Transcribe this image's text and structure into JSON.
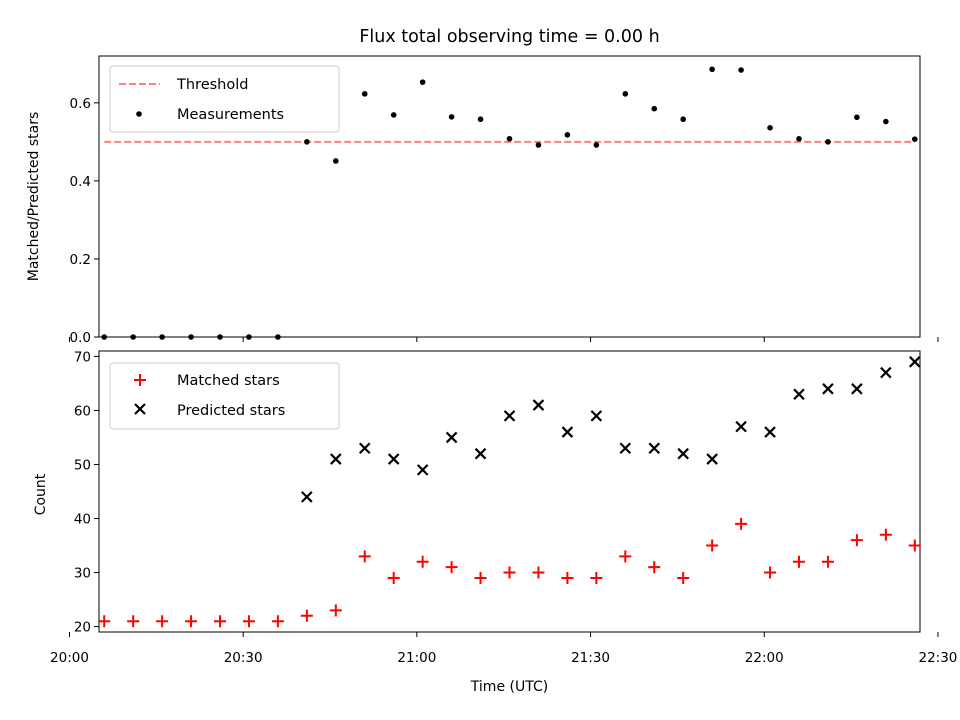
{
  "chart_data": [
    {
      "type": "scatter",
      "title": "Flux total observing time = 0.00 h",
      "xlabel": "",
      "ylabel": "Matched/Predicted stars",
      "xlim": [
        "20:00",
        "22:30"
      ],
      "ylim": [
        0,
        0.72
      ],
      "yticks": [
        0.0,
        0.2,
        0.4,
        0.6
      ],
      "ytick_labels": [
        "0.0",
        "0.2",
        "0.4",
        "0.6"
      ],
      "legend_position": "upper-left",
      "series": [
        {
          "name": "Threshold",
          "kind": "dashed-line",
          "color": "#ff7f7f",
          "x": [
            "20:06",
            "22:26"
          ],
          "y": [
            0.5,
            0.5
          ]
        },
        {
          "name": "Measurements",
          "kind": "points",
          "color": "#000000",
          "x": [
            "20:06",
            "20:11",
            "20:16",
            "20:21",
            "20:26",
            "20:31",
            "20:36",
            "20:41",
            "20:46",
            "20:51",
            "20:56",
            "21:01",
            "21:06",
            "21:11",
            "21:16",
            "21:21",
            "21:26",
            "21:31",
            "21:36",
            "21:41",
            "21:46",
            "21:51",
            "21:56",
            "22:01",
            "22:06",
            "22:11",
            "22:16",
            "22:21",
            "22:26"
          ],
          "y": [
            0,
            0,
            0,
            0,
            0,
            0,
            0,
            0.5,
            0.451,
            0.623,
            0.569,
            0.653,
            0.564,
            0.558,
            0.508,
            0.492,
            0.518,
            0.492,
            0.623,
            0.585,
            0.558,
            0.686,
            0.684,
            0.536,
            0.508,
            0.5,
            0.563,
            0.552,
            0.507
          ]
        }
      ]
    },
    {
      "type": "scatter",
      "title": "",
      "xlabel": "Time (UTC)",
      "ylabel": "Count",
      "xlim": [
        "20:00",
        "22:30"
      ],
      "ylim": [
        19,
        71
      ],
      "yticks": [
        20,
        30,
        40,
        50,
        60,
        70
      ],
      "ytick_labels": [
        "20",
        "30",
        "40",
        "50",
        "60",
        "70"
      ],
      "xticks": [
        "20:00",
        "20:30",
        "21:00",
        "21:30",
        "22:00",
        "22:30"
      ],
      "xtick_labels": [
        "20:00",
        "20:30",
        "21:00",
        "21:30",
        "22:00",
        "22:30"
      ],
      "legend_position": "upper-left",
      "series": [
        {
          "name": "Matched stars",
          "kind": "plus",
          "color": "#ff0000",
          "x": [
            "20:06",
            "20:11",
            "20:16",
            "20:21",
            "20:26",
            "20:31",
            "20:36",
            "20:41",
            "20:46",
            "20:51",
            "20:56",
            "21:01",
            "21:06",
            "21:11",
            "21:16",
            "21:21",
            "21:26",
            "21:31",
            "21:36",
            "21:41",
            "21:46",
            "21:51",
            "21:56",
            "22:01",
            "22:06",
            "22:11",
            "22:16",
            "22:21",
            "22:26"
          ],
          "y": [
            21,
            21,
            21,
            21,
            21,
            21,
            21,
            22,
            23,
            33,
            29,
            32,
            31,
            29,
            30,
            30,
            29,
            29,
            33,
            31,
            29,
            35,
            39,
            30,
            32,
            32,
            36,
            37,
            35
          ]
        },
        {
          "name": "Predicted stars",
          "kind": "cross",
          "color": "#000000",
          "x": [
            "20:41",
            "20:46",
            "20:51",
            "20:56",
            "21:01",
            "21:06",
            "21:11",
            "21:16",
            "21:21",
            "21:26",
            "21:31",
            "21:36",
            "21:41",
            "21:46",
            "21:51",
            "21:56",
            "22:01",
            "22:06",
            "22:11",
            "22:16",
            "22:21",
            "22:26"
          ],
          "y": [
            44,
            51,
            53,
            51,
            49,
            55,
            52,
            59,
            61,
            56,
            59,
            53,
            53,
            52,
            51,
            57,
            56,
            63,
            64,
            64,
            67,
            69
          ]
        }
      ]
    }
  ]
}
